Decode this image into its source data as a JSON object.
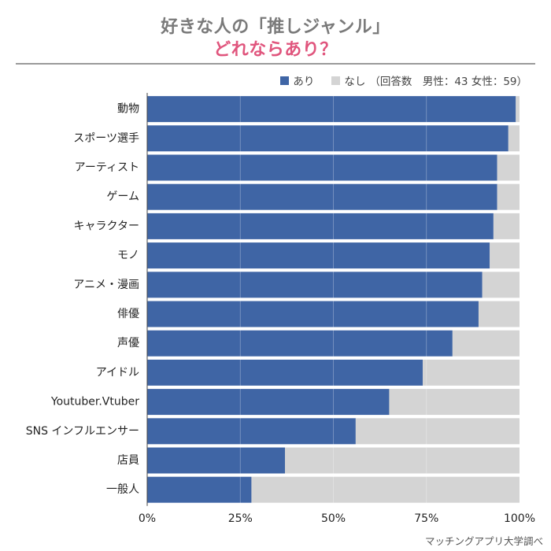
{
  "title": {
    "line1": "好きな人の「推しジャンル」",
    "line2": "どれならあり？"
  },
  "legend": {
    "yes_label": "あり",
    "no_label": "なし",
    "sample_note": "（回答数　男性：43 女性：59）"
  },
  "source": "マッチングアプリ大学調べ",
  "colors": {
    "yes": "#3f65a5",
    "no": "#d4d4d4",
    "title_accent": "#e0557d",
    "title_gray": "#7a7a7a"
  },
  "chart_data": {
    "type": "bar",
    "orientation": "horizontal",
    "stacked": true,
    "percent_scale": true,
    "title": "好きな人の「推しジャンル」どれならあり？",
    "xlabel": "",
    "ylabel": "",
    "xlim": [
      0,
      100
    ],
    "x_ticks": [
      "0%",
      "25%",
      "50%",
      "75%",
      "100%"
    ],
    "legend_position": "top-right",
    "grid": true,
    "categories": [
      "動物",
      "スポーツ選手",
      "アーティスト",
      "ゲーム",
      "キャラクター",
      "モノ",
      "アニメ・漫画",
      "俳優",
      "声優",
      "アイドル",
      "Youtuber.Vtuber",
      "SNS インフルエンサー",
      "店員",
      "一般人"
    ],
    "series": [
      {
        "name": "あり",
        "values": [
          99,
          97,
          94,
          94,
          93,
          92,
          90,
          89,
          82,
          74,
          65,
          56,
          37,
          28
        ]
      },
      {
        "name": "なし",
        "values": [
          1,
          3,
          6,
          6,
          7,
          8,
          10,
          11,
          18,
          26,
          35,
          44,
          63,
          72
        ]
      }
    ]
  }
}
